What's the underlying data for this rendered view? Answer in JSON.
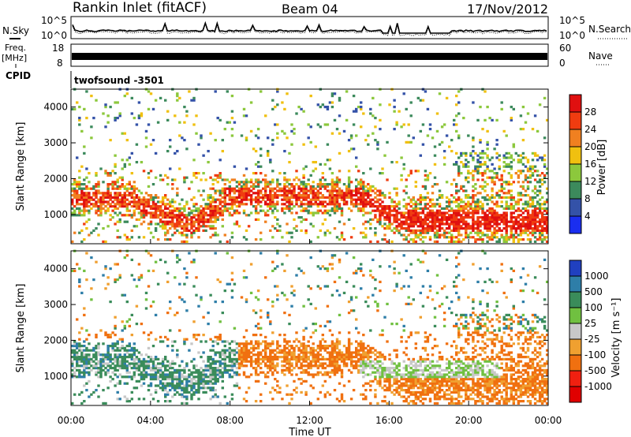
{
  "header": {
    "site": "Rankin Inlet (fitACF)",
    "beam": "Beam 04",
    "date": "17/Nov/2012"
  },
  "chart_data": [
    {
      "type": "line",
      "name": "noise-panel",
      "left_label": "N.Sky",
      "left_ticks": [
        "10^5",
        "10^0"
      ],
      "right_label": "N.Search",
      "right_ticks": [
        "10^5",
        "10^0"
      ]
    },
    {
      "type": "line",
      "name": "frequency-panel",
      "left_label_line1": "Freq.",
      "left_label_line2": "[MHz]",
      "left_ticks": [
        "18",
        "8"
      ],
      "right_label": "Nave",
      "right_ticks": [
        "60",
        "0"
      ]
    },
    {
      "type": "table",
      "name": "cpid-panel",
      "label": "CPID",
      "program": "twofsound -3501"
    },
    {
      "type": "heatmap",
      "name": "power",
      "ylabel": "Slant Range [km]",
      "y_ticks": [
        "1000",
        "2000",
        "3000",
        "4000"
      ],
      "ylim": [
        180,
        4500
      ],
      "colorbar_label": "Power [dB]",
      "colorbar_ticks": [
        "4",
        "8",
        "12",
        "16",
        "20",
        "24",
        "28"
      ],
      "colorbar_colors": [
        "#1a2ef0",
        "#3452a8",
        "#3c8a5c",
        "#8cc83c",
        "#f0c010",
        "#f08020",
        "#f03c10",
        "#e01010"
      ]
    },
    {
      "type": "heatmap",
      "name": "velocity",
      "ylabel": "Slant Range [km]",
      "y_ticks": [
        "1000",
        "2000",
        "3000",
        "4000"
      ],
      "ylim": [
        180,
        4500
      ],
      "xlabel": "Time UT",
      "x_ticks": [
        "00:00",
        "04:00",
        "08:00",
        "12:00",
        "16:00",
        "20:00",
        "00:00"
      ],
      "colorbar_label": "Velocity [m s⁻¹]",
      "colorbar_ticks": [
        "1000",
        "500",
        "100",
        "25",
        "-25",
        "-100",
        "-500",
        "-1000"
      ],
      "colorbar_colors": [
        "#2040c0",
        "#2e7ea8",
        "#3a8c5a",
        "#70c040",
        "#c8c8c8",
        "#f0a030",
        "#f07010",
        "#f02010",
        "#e00000"
      ]
    }
  ]
}
